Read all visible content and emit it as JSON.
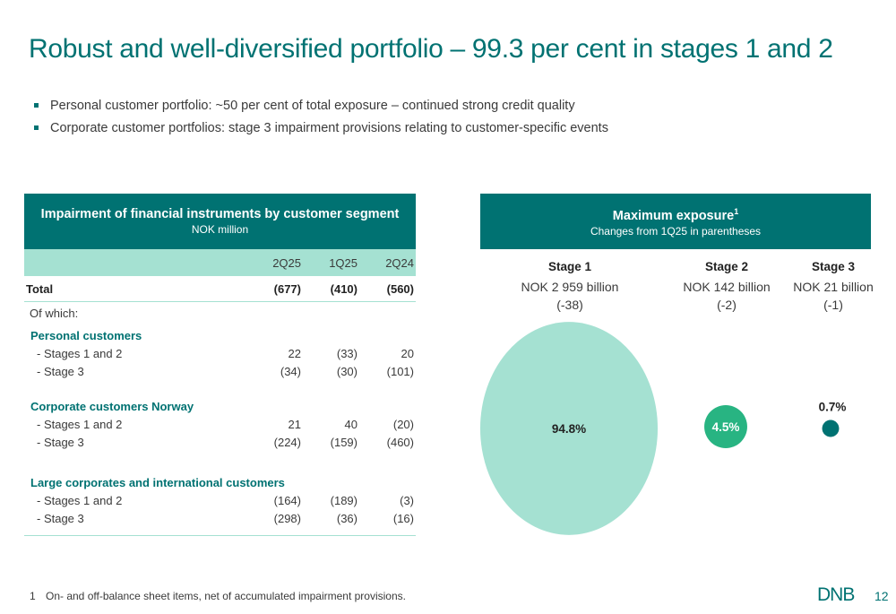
{
  "title": "Robust and well-diversified portfolio – 99.3 per cent in stages 1 and 2",
  "bullets": [
    "Personal customer portfolio: ~50 per cent of total exposure – continued strong credit quality",
    "Corporate customer portfolios: stage 3 impairment provisions relating to customer-specific events"
  ],
  "colors": {
    "brand": "#007272",
    "header_light": "#a5e1d2",
    "stage1": "#a5e1d2",
    "stage2": "#28b482",
    "stage3": "#007272"
  },
  "chart_data": [
    {
      "type": "table",
      "title": "Impairment of financial instruments by customer segment",
      "subtitle": "NOK million",
      "columns": [
        "2Q25",
        "1Q25",
        "2Q24"
      ],
      "total": {
        "label": "Total",
        "values": [
          "(677)",
          "(410)",
          "(560)"
        ]
      },
      "of_which_label": "Of which:",
      "segments": [
        {
          "name": "Personal customers",
          "rows": [
            {
              "label": "- Stages 1 and 2",
              "values": [
                "22",
                "(33)",
                "20"
              ]
            },
            {
              "label": "- Stage 3",
              "values": [
                "(34)",
                "(30)",
                "(101)"
              ]
            }
          ]
        },
        {
          "name": "Corporate customers Norway",
          "rows": [
            {
              "label": "- Stages 1 and 2",
              "values": [
                "21",
                "40",
                "(20)"
              ]
            },
            {
              "label": "- Stage 3",
              "values": [
                "(224)",
                "(159)",
                "(460)"
              ]
            }
          ]
        },
        {
          "name": "Large corporates and international customers",
          "rows": [
            {
              "label": "- Stages 1 and 2",
              "values": [
                "(164)",
                "(189)",
                "(3)"
              ]
            },
            {
              "label": "- Stage 3",
              "values": [
                "(298)",
                "(36)",
                "(16)"
              ]
            }
          ]
        }
      ]
    },
    {
      "type": "scatter",
      "title": "Maximum exposure",
      "title_sup": "1",
      "subtitle": "Changes from 1Q25 in parentheses",
      "stages": [
        {
          "name": "Stage 1",
          "amount": "NOK 2 959 billion",
          "change": "(-38)",
          "share_label": "94.8%",
          "share": 94.8
        },
        {
          "name": "Stage 2",
          "amount": "NOK 142 billion",
          "change": "(-2)",
          "share_label": "4.5%",
          "share": 4.5
        },
        {
          "name": "Stage 3",
          "amount": "NOK 21 billion",
          "change": "(-1)",
          "share_label": "0.7%",
          "share": 0.7
        }
      ]
    }
  ],
  "footnote": {
    "number": "1",
    "text": "On- and off-balance sheet items, net of accumulated impairment provisions."
  },
  "logo_text": "DNB",
  "page_number": "12"
}
